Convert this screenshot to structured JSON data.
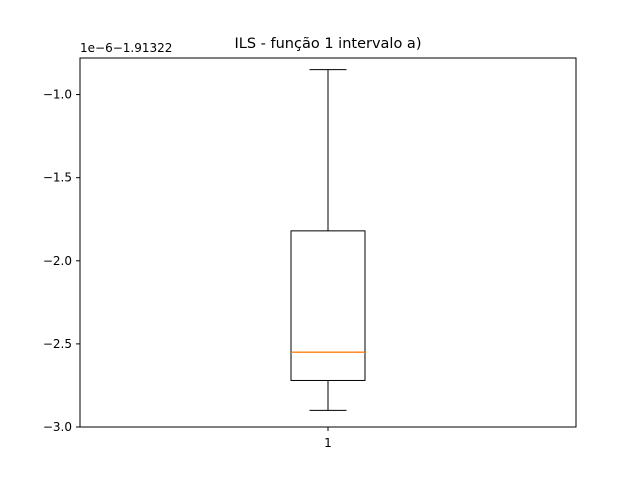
{
  "chart_data": {
    "type": "boxplot",
    "title": "ILS - função 1 intervalo a)",
    "axis_offset_label": "1e−6−1.91322",
    "xlabel": "",
    "ylabel": "",
    "x_tick_labels": [
      "1"
    ],
    "y_ticks": [
      -3.0,
      -2.5,
      -2.0,
      -1.5,
      -1.0
    ],
    "y_tick_labels": [
      "−3.0",
      "−2.5",
      "−2.0",
      "−1.5",
      "−1.0"
    ],
    "ylim": [
      -3.0,
      -0.78
    ],
    "grid": false,
    "boxes": [
      {
        "label": "1",
        "whisker_low": -2.9,
        "q1": -2.72,
        "median": -2.55,
        "q3": -1.82,
        "whisker_high": -0.85
      }
    ],
    "colors": {
      "median": "#ff7f0e",
      "box": "#000000",
      "axes": "#000000"
    }
  }
}
